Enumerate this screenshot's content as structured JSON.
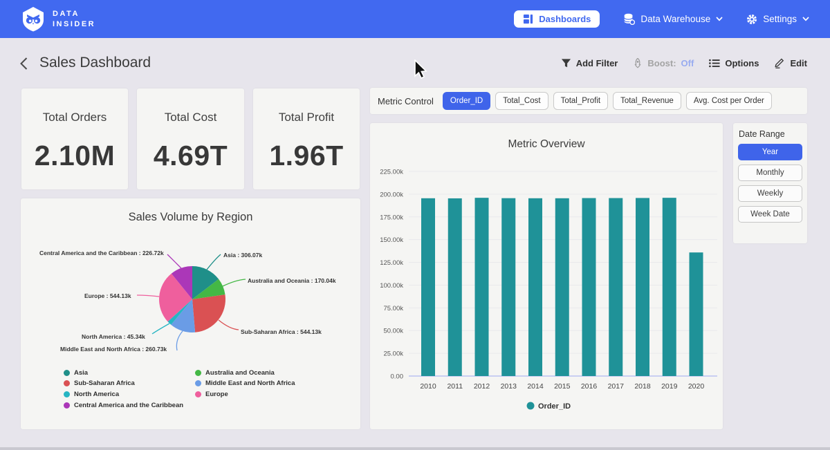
{
  "navbar": {
    "brand_line1": "DATA",
    "brand_line2": "INSIDER",
    "dashboards_label": "Dashboards",
    "data_warehouse_label": "Data Warehouse",
    "settings_label": "Settings"
  },
  "header": {
    "title": "Sales Dashboard",
    "add_filter_label": "Add Filter",
    "boost_label": "Boost:",
    "boost_value": "Off",
    "options_label": "Options",
    "edit_label": "Edit"
  },
  "kpis": [
    {
      "label": "Total Orders",
      "value": "2.10M"
    },
    {
      "label": "Total Cost",
      "value": "4.69T"
    },
    {
      "label": "Total Profit",
      "value": "1.96T"
    }
  ],
  "metric_control": {
    "label": "Metric Control",
    "chips": [
      {
        "label": "Order_ID",
        "selected": true
      },
      {
        "label": "Total_Cost",
        "selected": false
      },
      {
        "label": "Total_Profit",
        "selected": false
      },
      {
        "label": "Total_Revenue",
        "selected": false
      },
      {
        "label": "Avg. Cost per Order",
        "selected": false
      }
    ]
  },
  "date_range": {
    "label": "Date Range",
    "options": [
      {
        "label": "Year",
        "selected": true
      },
      {
        "label": "Monthly",
        "selected": false
      },
      {
        "label": "Weekly",
        "selected": false
      },
      {
        "label": "Week Date",
        "selected": false
      }
    ]
  },
  "colors": {
    "primary_blue": "#4169f0",
    "selected_blue": "#3f64ea",
    "bar_teal": "#1f9298",
    "page_bg": "#e7e5ec",
    "panel_bg": "#f5f5f3",
    "boost_off": "#98abf0"
  },
  "chart_data": [
    {
      "type": "bar",
      "title": "Metric Overview",
      "categories": [
        "2010",
        "2011",
        "2012",
        "2013",
        "2014",
        "2015",
        "2016",
        "2017",
        "2018",
        "2019",
        "2020"
      ],
      "series": [
        {
          "name": "Order_ID",
          "color": "#1f9298",
          "values": [
            195500,
            195400,
            196000,
            195600,
            195500,
            195500,
            195700,
            195700,
            195800,
            196000,
            135900
          ]
        }
      ],
      "ylim": [
        0,
        225000
      ],
      "ytick_labels": [
        "0.00",
        "25.00k",
        "50.00k",
        "75.00k",
        "100.00k",
        "125.00k",
        "150.00k",
        "175.00k",
        "200.00k",
        "225.00k"
      ],
      "legend": [
        "Order_ID"
      ],
      "grid": true,
      "legend_position": "bottom"
    },
    {
      "type": "pie",
      "title": "Sales Volume by Region",
      "slices": [
        {
          "name": "Asia",
          "value": 306.07,
          "display": "306.07k",
          "color": "#1f8f89"
        },
        {
          "name": "Australia and Oceania",
          "value": 170.04,
          "display": "170.04k",
          "color": "#44b845"
        },
        {
          "name": "Sub-Saharan Africa",
          "value": 544.13,
          "display": "544.13k",
          "color": "#da5153"
        },
        {
          "name": "Middle East and North Africa",
          "value": 260.73,
          "display": "260.73k",
          "color": "#6a9ce6"
        },
        {
          "name": "North America",
          "value": 45.34,
          "display": "45.34k",
          "color": "#26b5c3"
        },
        {
          "name": "Europe",
          "value": 544.13,
          "display": "544.13k",
          "color": "#ef5f9d"
        },
        {
          "name": "Central America and the Caribbean",
          "value": 226.72,
          "display": "226.72k",
          "color": "#ab37b8"
        }
      ],
      "legend_columns": [
        [
          "Asia",
          "Sub-Saharan Africa",
          "North America",
          "Central America and the Caribbean"
        ],
        [
          "Australia and Oceania",
          "Middle East and North Africa",
          "Europe"
        ]
      ],
      "legend_position": "bottom"
    }
  ]
}
